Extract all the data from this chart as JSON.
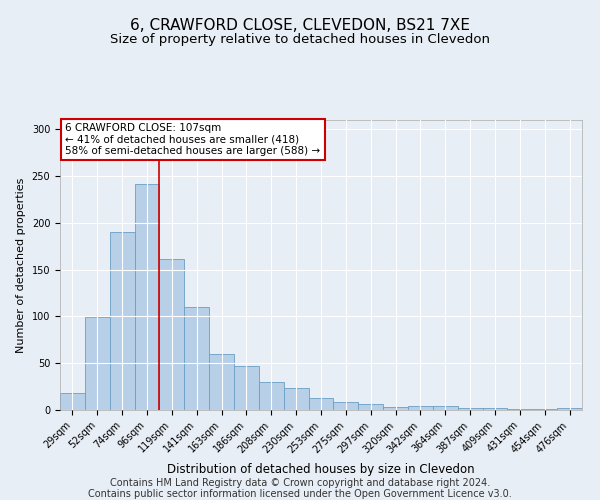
{
  "title1": "6, CRAWFORD CLOSE, CLEVEDON, BS21 7XE",
  "title2": "Size of property relative to detached houses in Clevedon",
  "xlabel": "Distribution of detached houses by size in Clevedon",
  "ylabel": "Number of detached properties",
  "categories": [
    "29sqm",
    "52sqm",
    "74sqm",
    "96sqm",
    "119sqm",
    "141sqm",
    "163sqm",
    "186sqm",
    "208sqm",
    "230sqm",
    "253sqm",
    "275sqm",
    "297sqm",
    "320sqm",
    "342sqm",
    "364sqm",
    "387sqm",
    "409sqm",
    "431sqm",
    "454sqm",
    "476sqm"
  ],
  "values": [
    18,
    99,
    190,
    242,
    161,
    110,
    60,
    47,
    30,
    24,
    13,
    9,
    6,
    3,
    4,
    4,
    2,
    2,
    1,
    1,
    2
  ],
  "bar_color": "#b8cfe8",
  "bar_edgecolor": "#6a9ec5",
  "vline_x": 3.5,
  "vline_color": "#cc0000",
  "annotation_box_text": "6 CRAWFORD CLOSE: 107sqm\n← 41% of detached houses are smaller (418)\n58% of semi-detached houses are larger (588) →",
  "annotation_box_color": "#cc0000",
  "annotation_box_facecolor": "white",
  "footnote1": "Contains HM Land Registry data © Crown copyright and database right 2024.",
  "footnote2": "Contains public sector information licensed under the Open Government Licence v3.0.",
  "ylim": [
    0,
    310
  ],
  "bg_color": "#e8eef5",
  "plot_bg_color": "#e8eef5",
  "grid_color": "white",
  "title1_fontsize": 11,
  "title2_fontsize": 9.5,
  "ylabel_fontsize": 8,
  "xlabel_fontsize": 8.5,
  "footnote_fontsize": 7,
  "tick_fontsize": 7
}
